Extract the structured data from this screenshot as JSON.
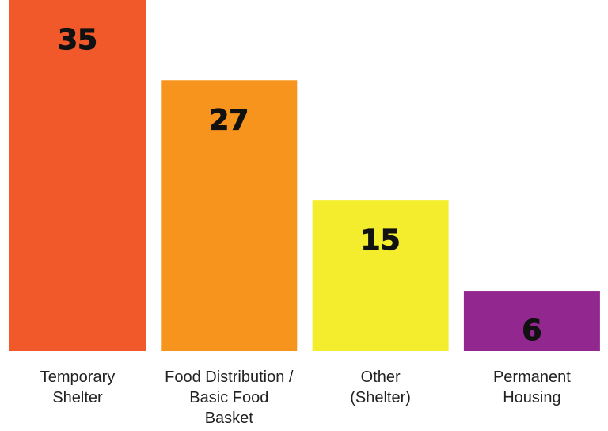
{
  "chart_data": {
    "type": "bar",
    "categories": [
      "Temporary\nShelter",
      "Food Distribution /\nBasic Food\nBasket",
      "Other\n(Shelter)",
      "Permanent\nHousing"
    ],
    "values": [
      35,
      27,
      15,
      6
    ],
    "colors": [
      "#f1592a",
      "#f7941d",
      "#f4ed2e",
      "#92278f"
    ]
  }
}
